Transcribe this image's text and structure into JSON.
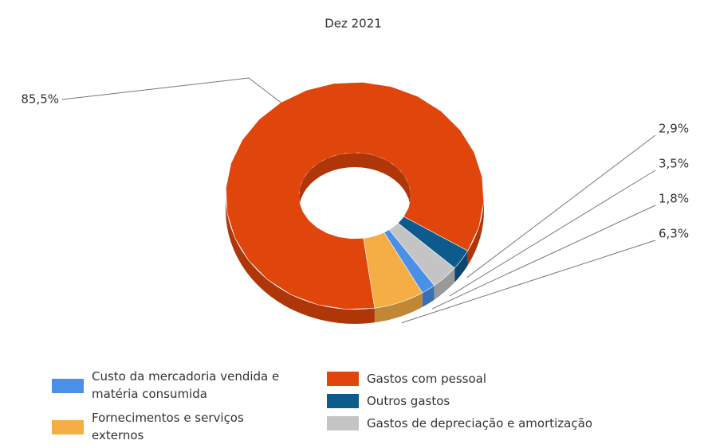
{
  "chart_data": {
    "type": "donut3d",
    "title": "Dez 2021",
    "categories": [
      "Custo da mercadoria vendida e matéria consumida",
      "Fornecimentos e serviços externos",
      "Gastos com pessoal",
      "Outros gastos",
      "Gastos de depreciação e amortização"
    ],
    "values": [
      1.8,
      6.3,
      85.5,
      2.9,
      3.5
    ],
    "value_labels": [
      "1,8%",
      "6,3%",
      "85,5%",
      "2,9%",
      "3,5%"
    ],
    "colors": [
      "#4a8fe8",
      "#f5ae45",
      "#e0450c",
      "#0d5a8c",
      "#c4c4c4"
    ],
    "legend": "bottom"
  }
}
